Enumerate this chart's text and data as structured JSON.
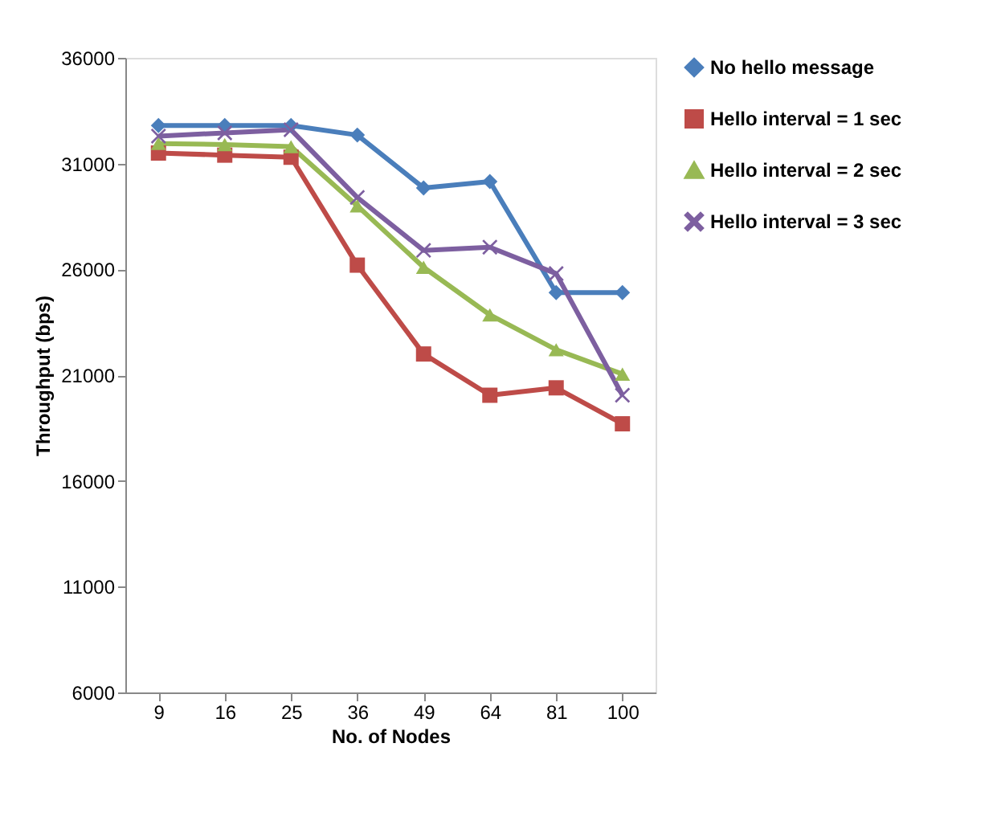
{
  "chart_data": {
    "type": "line",
    "xlabel": "No. of Nodes",
    "ylabel": "Throughput (bps)",
    "categories": [
      "9",
      "16",
      "25",
      "36",
      "49",
      "64",
      "81",
      "100"
    ],
    "ylim": [
      6000,
      36000
    ],
    "yticks": [
      6000,
      11000,
      16000,
      21000,
      26000,
      31000,
      36000
    ],
    "grid": false,
    "legend": "top right",
    "series": [
      {
        "name": "No hello message",
        "color": "#4a7ebb",
        "marker": "diamond",
        "values": [
          32800,
          32800,
          32800,
          32350,
          29850,
          30150,
          24900,
          24900
        ]
      },
      {
        "name": "Hello interval = 1 sec",
        "color": "#be4b48",
        "marker": "square",
        "values": [
          31500,
          31400,
          31300,
          26200,
          22000,
          20050,
          20400,
          18700
        ]
      },
      {
        "name": "Hello interval = 2 sec",
        "color": "#98b954",
        "marker": "triangle",
        "values": [
          31950,
          31900,
          31800,
          29000,
          26100,
          23850,
          22200,
          21050
        ]
      },
      {
        "name": "Hello interval = 3 sec",
        "color": "#7d5fa0",
        "marker": "cross",
        "values": [
          32300,
          32450,
          32600,
          29400,
          26900,
          27050,
          25800,
          20050
        ]
      }
    ]
  }
}
